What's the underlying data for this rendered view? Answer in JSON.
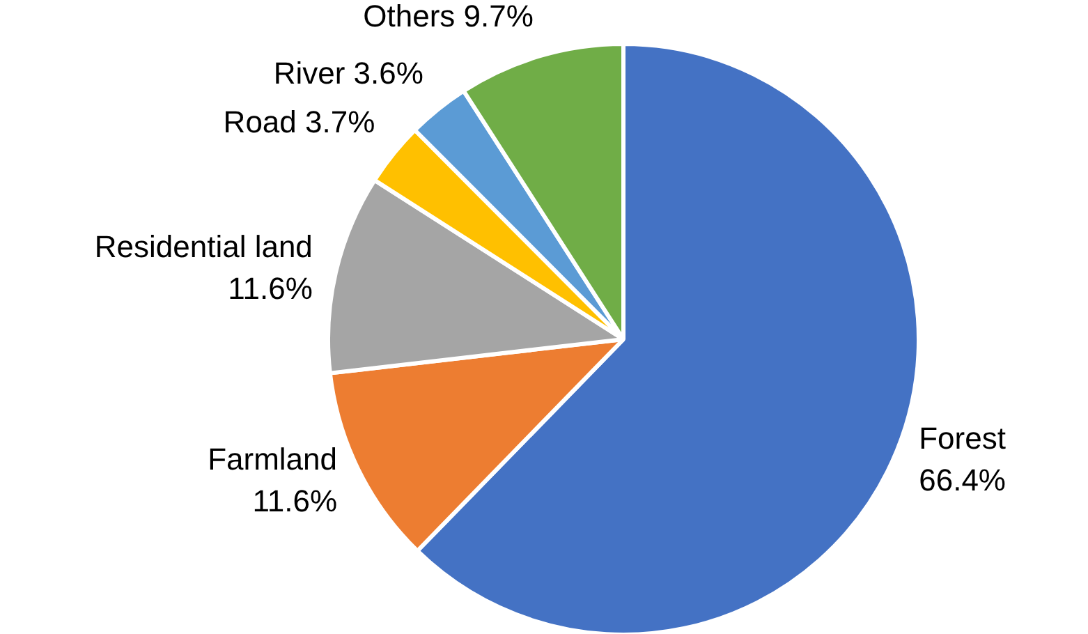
{
  "chart_data": {
    "type": "pie",
    "categories": [
      "Forest",
      "Farmland",
      "Residential land",
      "Road",
      "River",
      "Others"
    ],
    "values": [
      66.4,
      11.6,
      11.6,
      3.7,
      3.6,
      9.7
    ],
    "value_labels": [
      "66.4%",
      "11.6%",
      "11.6%",
      "3.7%",
      "3.6%",
      "9.7%"
    ],
    "colors": [
      "#4472c4",
      "#ed7d31",
      "#a5a5a5",
      "#ffc000",
      "#5b9bd5",
      "#70ad47"
    ],
    "legend": false
  }
}
